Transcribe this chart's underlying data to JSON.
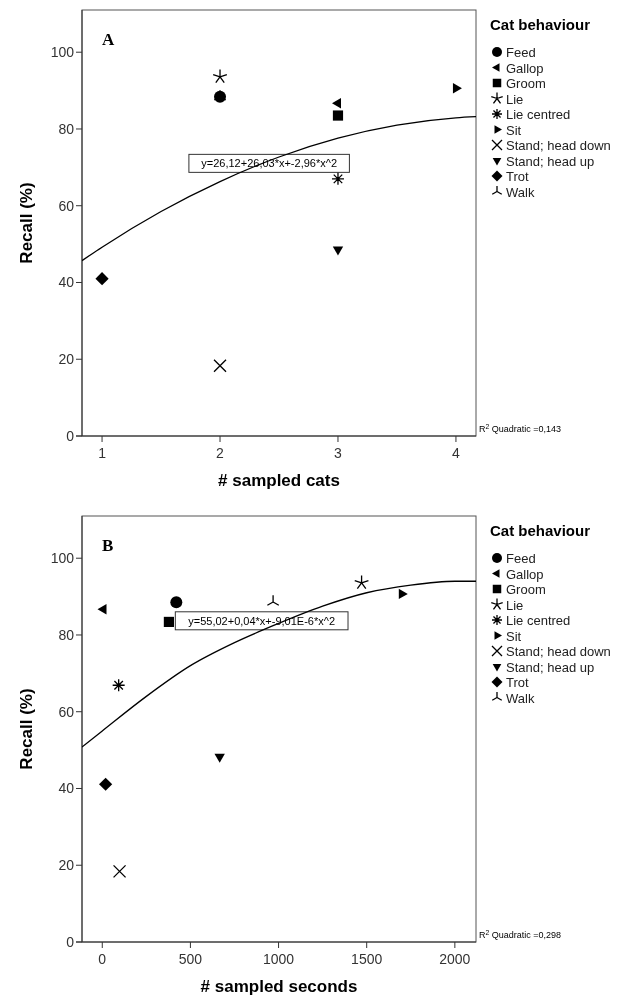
{
  "chart_data": [
    {
      "type": "scatter",
      "xlabel": "# sampled cats",
      "ylabel": "Recall (%)",
      "legend_title": "Cat behaviour",
      "legend": "right",
      "grid": false,
      "xlim": [
        0.83,
        4.17
      ],
      "xticks": [
        1,
        2,
        3,
        4
      ],
      "ylim": [
        0,
        111
      ],
      "yticks": [
        0,
        20,
        40,
        60,
        80,
        100
      ],
      "annotations": [
        "A",
        "R$^{2}$ Quadratic =0,143",
        "y=26,12+26,03*x+-2,96*x^2"
      ],
      "series": [
        {
          "name": "Feed",
          "color": "#000000",
          "marker": "circle",
          "x": [
            2
          ],
          "values": [
            88.4
          ]
        },
        {
          "name": "Gallop",
          "color": "#000000",
          "marker": "triangle-left",
          "x": [
            3
          ],
          "values": [
            86.7
          ]
        },
        {
          "name": "Groom",
          "color": "#000000",
          "marker": "square",
          "x": [
            3
          ],
          "values": [
            83.5
          ]
        },
        {
          "name": "Lie",
          "color": "#000000",
          "x": [
            2
          ],
          "values": [
            93.6
          ]
        },
        {
          "name": "Lie centred",
          "color": "#000000",
          "x": [
            3
          ],
          "values": [
            67.0
          ]
        },
        {
          "name": "Sit",
          "color": "#000000",
          "marker": "triangle-right",
          "x": [
            4
          ],
          "values": [
            90.6
          ]
        },
        {
          "name": "Stand; head down",
          "color": "#000000",
          "marker": "cross",
          "x": [
            2
          ],
          "values": [
            18.3
          ]
        },
        {
          "name": "Stand; head up",
          "color": "#000000",
          "marker": "triangle-down",
          "x": [
            3
          ],
          "values": [
            48.6
          ]
        },
        {
          "name": "Trot",
          "color": "#000000",
          "marker": "diamond",
          "x": [
            1
          ],
          "values": [
            41.0
          ]
        },
        {
          "name": "Walk",
          "color": "#000000",
          "x": [
            2
          ],
          "values": [
            88.4
          ]
        },
        {
          "type": "line",
          "color": "#000000",
          "marker": "none",
          "x": [
            0.83,
            1,
            1.5,
            2,
            2.5,
            3,
            3.5,
            4,
            4.17
          ],
          "values": [
            45.7,
            49.2,
            58.5,
            66.3,
            72.7,
            77.6,
            81.0,
            82.9,
            83.2
          ]
        }
      ]
    },
    {
      "type": "scatter",
      "xlabel": "# sampled seconds",
      "ylabel": "Recall (%)",
      "legend_title": "Cat behaviour",
      "legend": "right",
      "grid": false,
      "xlim": [
        -115,
        2120
      ],
      "xticks": [
        0,
        500,
        1000,
        1500,
        2000
      ],
      "ylim": [
        0,
        111
      ],
      "yticks": [
        0,
        20,
        40,
        60,
        80,
        100
      ],
      "annotations": [
        "B",
        "R$^{2}$ Quadratic =0,298",
        "y=55,02+0,04*x+-9,01E-6*x^2"
      ],
      "series": [
        {
          "name": "Feed",
          "color": "#000000",
          "marker": "circle",
          "x": [
            420
          ],
          "values": [
            88.5
          ]
        },
        {
          "name": "Gallop",
          "color": "#000000",
          "marker": "triangle-left",
          "x": [
            7
          ],
          "values": [
            86.7
          ]
        },
        {
          "name": "Groom",
          "color": "#000000",
          "marker": "square",
          "x": [
            378
          ],
          "values": [
            83.4
          ]
        },
        {
          "name": "Lie",
          "color": "#000000",
          "x": [
            1471
          ],
          "values": [
            93.6
          ]
        },
        {
          "name": "Lie centred",
          "color": "#000000",
          "x": [
            93
          ],
          "values": [
            66.9
          ]
        },
        {
          "name": "Sit",
          "color": "#000000",
          "marker": "triangle-right",
          "x": [
            1699
          ],
          "values": [
            90.7
          ]
        },
        {
          "name": "Stand; head down",
          "color": "#000000",
          "marker": "cross",
          "x": [
            98
          ],
          "values": [
            18.4
          ]
        },
        {
          "name": "Stand; head up",
          "color": "#000000",
          "marker": "triangle-down",
          "x": [
            666
          ],
          "values": [
            48.3
          ]
        },
        {
          "name": "Trot",
          "color": "#000000",
          "marker": "diamond",
          "x": [
            19
          ],
          "values": [
            41.1
          ]
        },
        {
          "name": "Walk",
          "color": "#000000",
          "x": [
            969
          ],
          "values": [
            88.6
          ]
        },
        {
          "type": "line",
          "color": "#000000",
          "marker": "none",
          "x": [
            -115,
            0,
            250,
            500,
            750,
            1000,
            1250,
            1500,
            1750,
            2000,
            2120
          ],
          "values": [
            50.8,
            55,
            64,
            72,
            78,
            83,
            87.5,
            91,
            93,
            94,
            94
          ]
        }
      ]
    }
  ]
}
